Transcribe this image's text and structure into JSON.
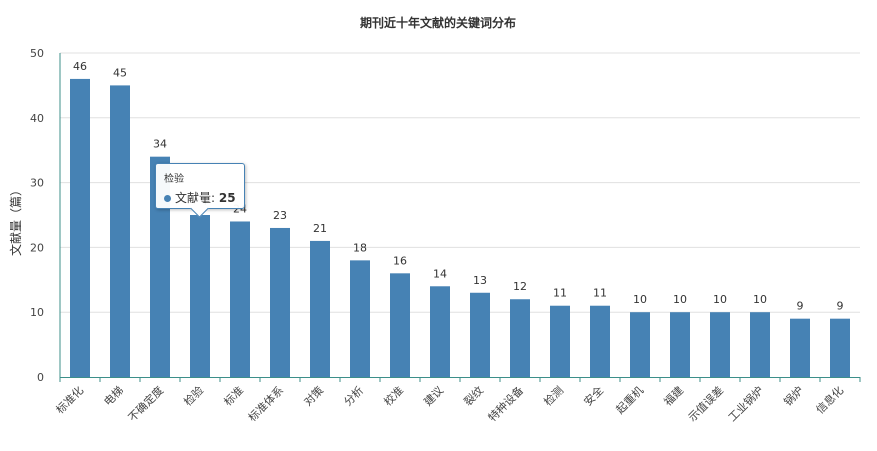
{
  "chart_data": {
    "type": "bar",
    "title": "期刊近十年文献的关键词分布",
    "ylabel": "文献量（篇）",
    "xlabel": "",
    "ylim": [
      0,
      50
    ],
    "yticks": [
      0,
      10,
      20,
      30,
      40,
      50
    ],
    "grid": true,
    "bar_color": "#4682b4",
    "categories": [
      "标准化",
      "电梯",
      "不确定度",
      "检验",
      "标准",
      "标准体系",
      "对策",
      "分析",
      "校准",
      "建议",
      "裂纹",
      "特种设备",
      "检测",
      "安全",
      "起重机",
      "福建",
      "示值误差",
      "工业锅炉",
      "锅炉",
      "信息化"
    ],
    "series": [
      {
        "name": "文献量",
        "values": [
          46,
          45,
          34,
          25,
          24,
          23,
          21,
          18,
          16,
          14,
          13,
          12,
          11,
          11,
          10,
          10,
          10,
          10,
          9,
          9
        ]
      }
    ]
  },
  "tooltip": {
    "category": "检验",
    "series_label": "文献量: ",
    "value": "25"
  }
}
